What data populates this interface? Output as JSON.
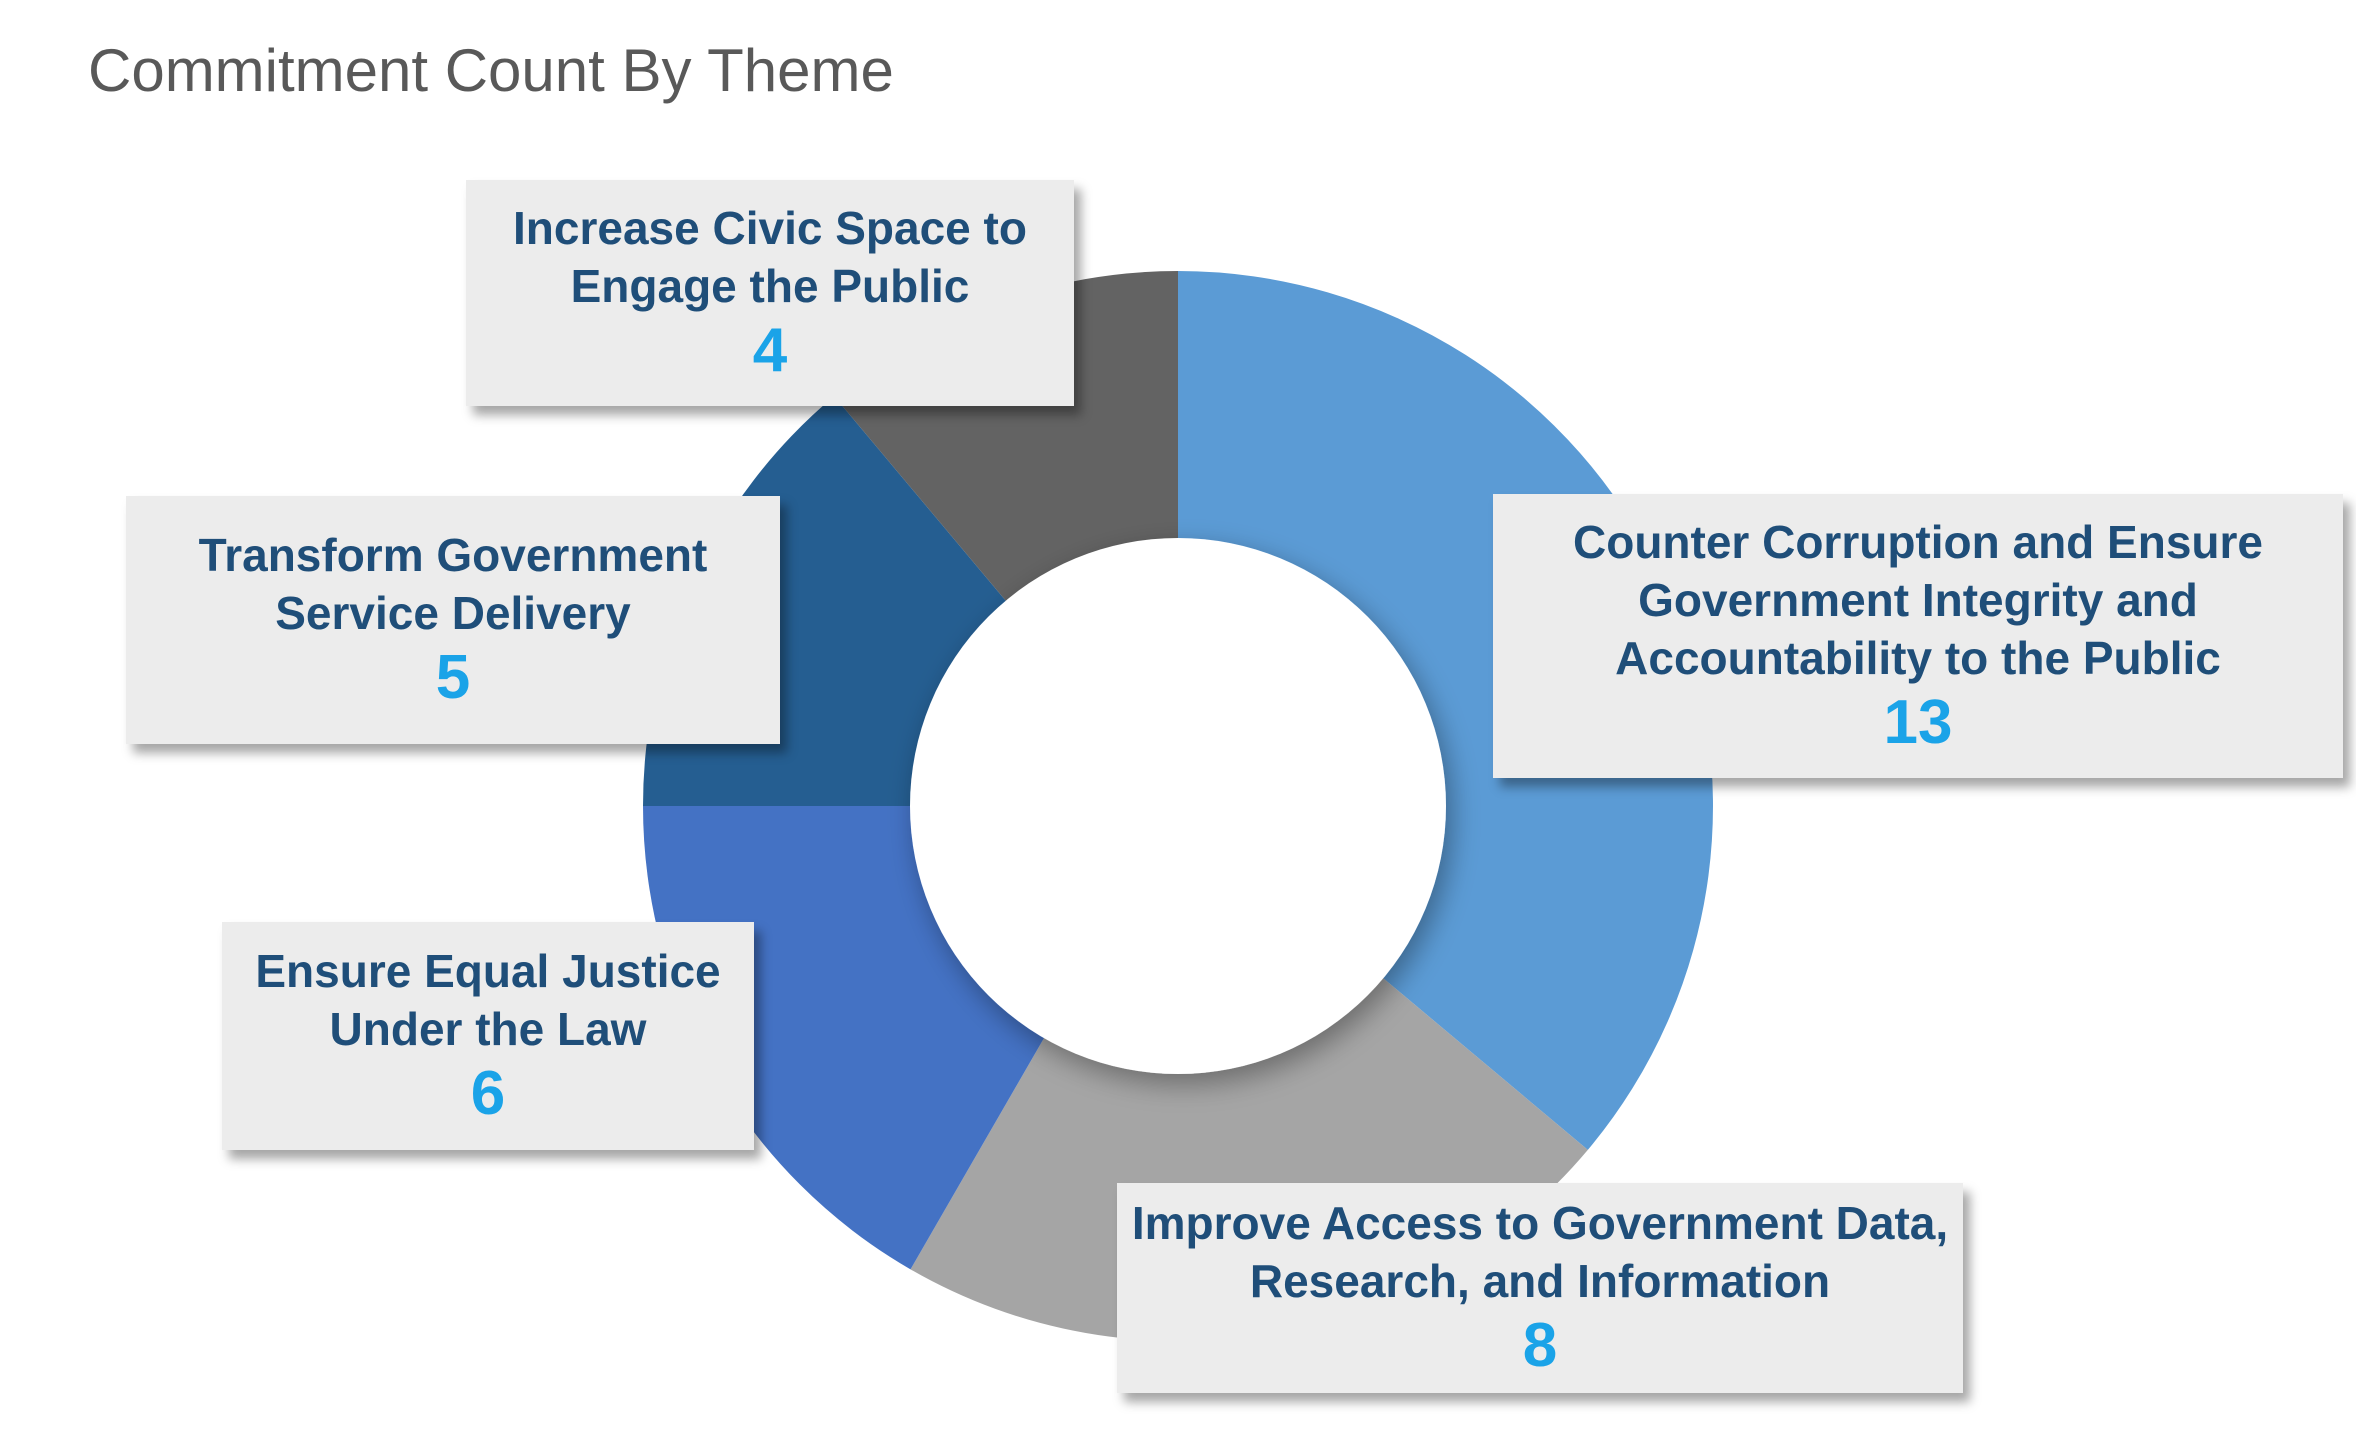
{
  "chart_data": {
    "type": "pie",
    "variant": "donut",
    "title": "Commitment Count By Theme",
    "start_angle_deg": 0,
    "direction": "clockwise",
    "slices": [
      {
        "label": "Counter Corruption and Ensure\nGovernment Integrity and\nAccountability to the Public",
        "value": 13,
        "color": "#5b9bd5"
      },
      {
        "label": "Improve Access to Government Data,\nResearch, and Information",
        "value": 8,
        "color": "#a5a5a5"
      },
      {
        "label": "Ensure Equal Justice\nUnder the Law",
        "value": 6,
        "color": "#4472c4"
      },
      {
        "label": "Transform Government\nService Delivery",
        "value": 5,
        "color": "#255e91"
      },
      {
        "label": "Increase Civic Space to\nEngage the Public",
        "value": 4,
        "color": "#636363"
      }
    ],
    "label_color": "#1f4e79",
    "value_color": "#1aa3e8",
    "callout_background": "#ececec"
  }
}
